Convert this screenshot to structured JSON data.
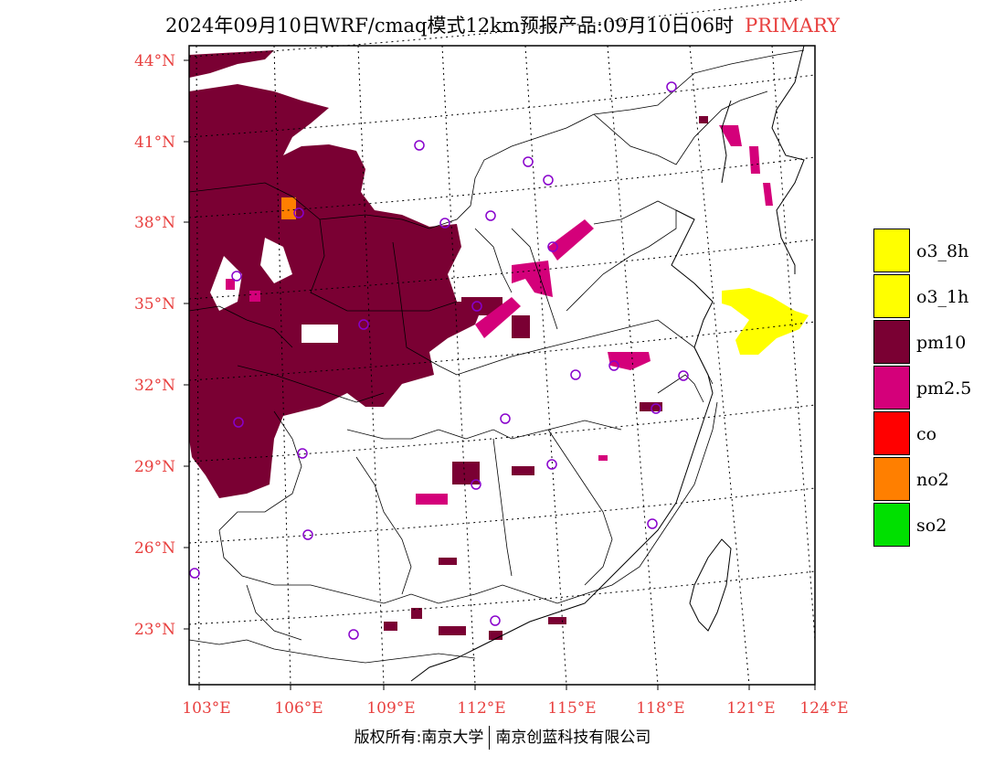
{
  "title": {
    "main": "2024年09月10日WRF/cmaq模式12km预报产品:09月10日06时",
    "tag": "PRIMARY"
  },
  "lat_labels": [
    "44°N",
    "41°N",
    "38°N",
    "35°N",
    "32°N",
    "29°N",
    "26°N",
    "23°N"
  ],
  "lon_labels": [
    "103°E",
    "106°E",
    "109°E",
    "112°E",
    "115°E",
    "118°E",
    "121°E",
    "124°E"
  ],
  "legend": [
    {
      "label": "o3_8h",
      "color": "#ffff00"
    },
    {
      "label": "o3_1h",
      "color": "#ffff00"
    },
    {
      "label": "pm10",
      "color": "#7a0033"
    },
    {
      "label": "pm2.5",
      "color": "#d4007a"
    },
    {
      "label": "co",
      "color": "#ff0000"
    },
    {
      "label": "no2",
      "color": "#ff7f00"
    },
    {
      "label": "so2",
      "color": "#00e000"
    }
  ],
  "footer": {
    "left": "版权所有:南京大学",
    "right": "南京创蓝科技有限公司"
  }
}
